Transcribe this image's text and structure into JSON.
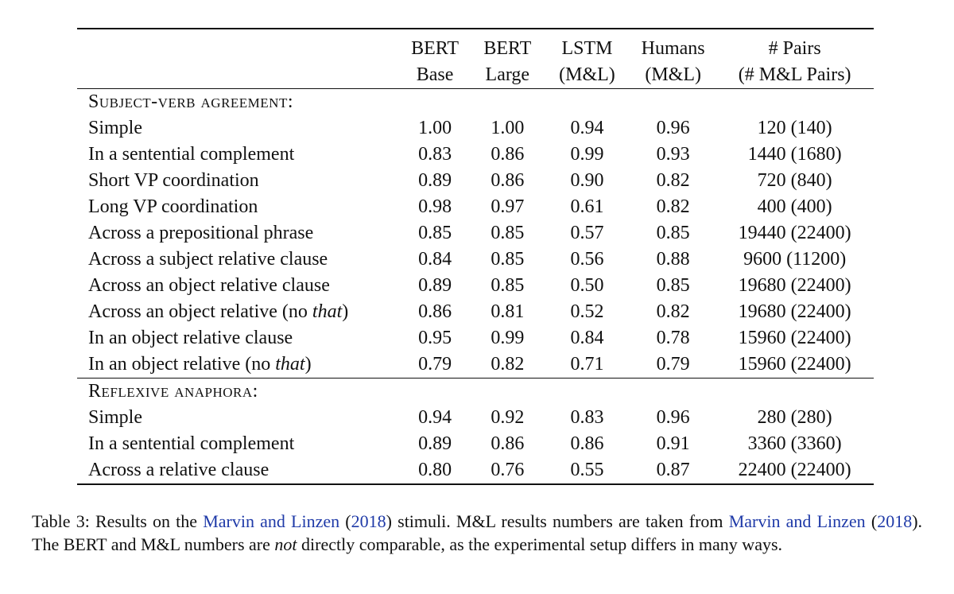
{
  "table": {
    "headers": [
      {
        "line1": "BERT",
        "line2": "Base"
      },
      {
        "line1": "BERT",
        "line2": "Large"
      },
      {
        "line1": "LSTM",
        "line2": "(M&L)"
      },
      {
        "line1": "Humans",
        "line2": "(M&L)"
      },
      {
        "line1": "# Pairs",
        "line2": "(# M&L Pairs)"
      }
    ],
    "sections": [
      {
        "title": "Subject-verb agreement:",
        "rows": [
          {
            "label": "Simple",
            "italic": "",
            "suffix": "",
            "values": [
              "1.00",
              "1.00",
              "0.94",
              "0.96",
              "120 (140)"
            ]
          },
          {
            "label": "In a sentential complement",
            "italic": "",
            "suffix": "",
            "values": [
              "0.83",
              "0.86",
              "0.99",
              "0.93",
              "1440 (1680)"
            ]
          },
          {
            "label": "Short VP coordination",
            "italic": "",
            "suffix": "",
            "values": [
              "0.89",
              "0.86",
              "0.90",
              "0.82",
              "720 (840)"
            ]
          },
          {
            "label": "Long VP coordination",
            "italic": "",
            "suffix": "",
            "values": [
              "0.98",
              "0.97",
              "0.61",
              "0.82",
              "400 (400)"
            ]
          },
          {
            "label": "Across a prepositional phrase",
            "italic": "",
            "suffix": "",
            "values": [
              "0.85",
              "0.85",
              "0.57",
              "0.85",
              "19440 (22400)"
            ]
          },
          {
            "label": "Across a subject relative clause",
            "italic": "",
            "suffix": "",
            "values": [
              "0.84",
              "0.85",
              "0.56",
              "0.88",
              "9600 (11200)"
            ]
          },
          {
            "label": "Across an object relative clause",
            "italic": "",
            "suffix": "",
            "values": [
              "0.89",
              "0.85",
              "0.50",
              "0.85",
              "19680 (22400)"
            ]
          },
          {
            "label": "Across an object relative (no ",
            "italic": "that",
            "suffix": ")",
            "values": [
              "0.86",
              "0.81",
              "0.52",
              "0.82",
              "19680 (22400)"
            ]
          },
          {
            "label": "In an object relative clause",
            "italic": "",
            "suffix": "",
            "values": [
              "0.95",
              "0.99",
              "0.84",
              "0.78",
              "15960 (22400)"
            ]
          },
          {
            "label": "In an object relative (no ",
            "italic": "that",
            "suffix": ")",
            "values": [
              "0.79",
              "0.82",
              "0.71",
              "0.79",
              "15960 (22400)"
            ]
          }
        ]
      },
      {
        "title": "Reflexive anaphora:",
        "rows": [
          {
            "label": "Simple",
            "italic": "",
            "suffix": "",
            "values": [
              "0.94",
              "0.92",
              "0.83",
              "0.96",
              "280 (280)"
            ]
          },
          {
            "label": "In a sentential complement",
            "italic": "",
            "suffix": "",
            "values": [
              "0.89",
              "0.86",
              "0.86",
              "0.91",
              "3360 (3360)"
            ]
          },
          {
            "label": "Across a relative clause",
            "italic": "",
            "suffix": "",
            "values": [
              "0.80",
              "0.76",
              "0.55",
              "0.87",
              "22400 (22400)"
            ]
          }
        ]
      }
    ]
  },
  "caption": {
    "t1": "Table 3: Results on the ",
    "link1": "Marvin and Linzen",
    "t2": " (",
    "link2": "2018",
    "t3": ") stimuli.  M&L results numbers are taken from ",
    "link3": "Marvin and Linzen",
    "t4": " (",
    "link4": "2018",
    "t5": ").  The BERT and M&L numbers are ",
    "em1": "not",
    "t6": " directly comparable, as the experimental setup differs in many ways.",
    "link_color": "#1f3aa8"
  }
}
